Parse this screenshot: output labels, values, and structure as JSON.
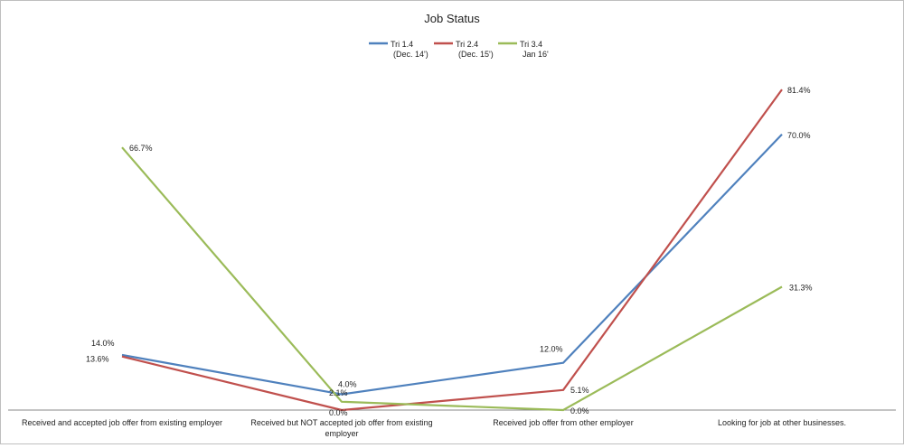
{
  "chart_data": {
    "type": "line",
    "title": "Job Status",
    "categories": [
      [
        "Received and accepted  job offer from existing  employer"
      ],
      [
        "Received but NOT accepted  job offer from existing",
        "employer"
      ],
      [
        "Received   job offer from other  employer"
      ],
      [
        "Looking for job at other businesses."
      ]
    ],
    "ylim": [
      0,
      100
    ],
    "grid": false,
    "legend_position": "top",
    "series": [
      {
        "name_lines": [
          "Tri 1.4",
          "(Dec. 14')"
        ],
        "color": "#4f81bd",
        "values": [
          14.0,
          4.0,
          12.0,
          70.0
        ],
        "labels": [
          "14.0%",
          "4.0%",
          "12.0%",
          "70.0%"
        ]
      },
      {
        "name_lines": [
          "Tri 2.4",
          "(Dec. 15')"
        ],
        "color": "#c0504d",
        "values": [
          13.6,
          0.0,
          5.1,
          81.4
        ],
        "labels": [
          "13.6%",
          "0.0%",
          "5.1%",
          "81.4%"
        ]
      },
      {
        "name_lines": [
          "Tri 3.4",
          "Jan 16'"
        ],
        "color": "#9bbb59",
        "values": [
          66.7,
          2.1,
          0.0,
          31.3
        ],
        "labels": [
          "66.7%",
          "2.1%",
          "0.0%",
          "31.3%"
        ]
      }
    ]
  }
}
